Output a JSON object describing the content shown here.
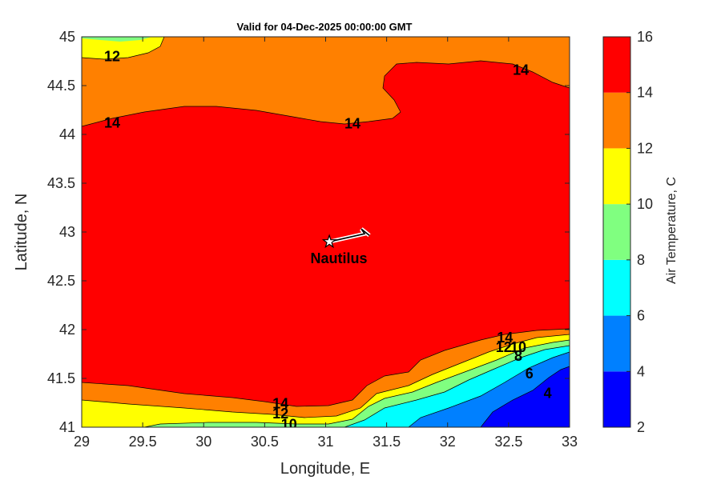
{
  "chart_data": {
    "type": "contour",
    "title": "Valid for 04-Dec-2025 00:00:00 GMT",
    "xlabel": "Longitude, E",
    "ylabel": "Latitude, N",
    "xlim": [
      29,
      33
    ],
    "ylim": [
      41,
      45
    ],
    "xticks": [
      "29",
      "29.5",
      "30",
      "30.5",
      "31",
      "31.5",
      "32",
      "32.5",
      "33"
    ],
    "yticks": [
      "41",
      "41.5",
      "42",
      "42.5",
      "43",
      "43.5",
      "44",
      "44.5",
      "45"
    ],
    "colorbar": {
      "label": "Air Temperature, C",
      "ticks": [
        "2",
        "4",
        "6",
        "8",
        "10",
        "12",
        "14",
        "16"
      ],
      "levels": [
        2,
        4,
        6,
        8,
        10,
        12,
        14,
        16
      ],
      "colors": [
        "#0000ff",
        "#0080ff",
        "#00ffff",
        "#80ff80",
        "#ffff00",
        "#ff8000",
        "#ff0000",
        "#800000"
      ]
    },
    "contour_labels": [
      {
        "text": "12",
        "x": 29.25,
        "y": 44.8
      },
      {
        "text": "14",
        "x": 29.25,
        "y": 44.12
      },
      {
        "text": "14",
        "x": 31.22,
        "y": 44.11
      },
      {
        "text": "14",
        "x": 32.6,
        "y": 44.66
      },
      {
        "text": "14",
        "x": 30.63,
        "y": 41.24
      },
      {
        "text": "12",
        "x": 30.63,
        "y": 41.14
      },
      {
        "text": "10",
        "x": 30.7,
        "y": 41.03
      },
      {
        "text": "14",
        "x": 32.47,
        "y": 41.92
      },
      {
        "text": "12",
        "x": 32.46,
        "y": 41.82
      },
      {
        "text": "10",
        "x": 32.58,
        "y": 41.82
      },
      {
        "text": "8",
        "x": 32.58,
        "y": 41.73
      },
      {
        "text": "6",
        "x": 32.67,
        "y": 41.55
      },
      {
        "text": "4",
        "x": 32.82,
        "y": 41.35
      }
    ],
    "marker": {
      "label": "Nautilus",
      "x": 31.03,
      "y": 42.9,
      "symbol": "star",
      "heading": "ENE"
    }
  }
}
